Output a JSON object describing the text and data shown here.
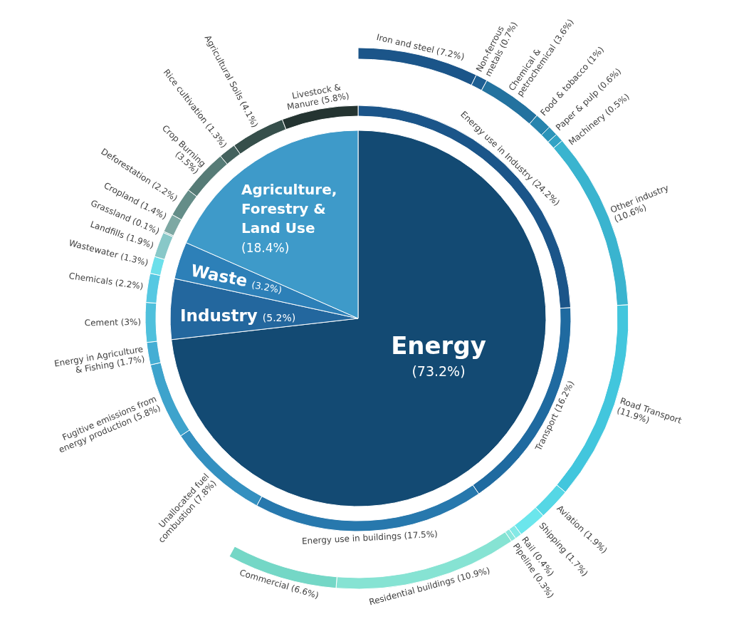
{
  "chart_data": [
    {
      "type": "pie",
      "categories": [
        "Energy",
        "Industry",
        "Waste",
        "Agriculture, Forestry & Land Use"
      ],
      "values": [
        73.2,
        5.2,
        3.2,
        18.4
      ],
      "value_labels": [
        "(73.2%)",
        "(5.2%)",
        "(3.2%)",
        "(18.4%)"
      ],
      "colors": [
        "#134a73",
        "#23679e",
        "#2d80b8",
        "#3e9ac9"
      ]
    },
    {
      "type": "donut",
      "categories": [
        "Energy use in Industry",
        "Transport",
        "Energy use in buildings",
        "Unallocated fuel combustion",
        "Fugitive emissions from energy production",
        "Energy in Agriculture & Fishing",
        "Cement",
        "Chemicals",
        "Wastewater",
        "Landfills",
        "Grassland",
        "Cropland",
        "Deforestation",
        "Crop Burning",
        "Rice cultivation",
        "Agricultural Soils",
        "Livestock & Manure"
      ],
      "values": [
        24.2,
        16.2,
        17.5,
        7.8,
        5.8,
        1.7,
        3,
        2.2,
        1.3,
        1.9,
        0.1,
        1.4,
        2.2,
        3.5,
        1.3,
        4.1,
        5.8
      ],
      "value_labels": [
        "(24.2%)",
        "(16.2%)",
        "(17.5%)",
        "(7.8%)",
        "(5.8%)",
        "(1.7%)",
        "(3%)",
        "(2.2%)",
        "(1.3%)",
        "(1.9%)",
        "(0.1%)",
        "(1.4%)",
        "(2.2%)",
        "(3.5%)",
        "(1.3%)",
        "(4.1%)",
        "(5.8%)"
      ],
      "colors": [
        "#1b5589",
        "#1f6aa0",
        "#2778ad",
        "#3490c0",
        "#3ea3cc",
        "#45aed4",
        "#4fc0dc",
        "#56c8e2",
        "#6cdfea",
        "#88c8c8",
        "#90bdb9",
        "#7da8a3",
        "#648d88",
        "#567b76",
        "#44625e",
        "#364f4b",
        "#243431"
      ]
    },
    {
      "type": "donut",
      "categories": [
        "Iron and steel",
        "Non-ferrous metals",
        "Chemical & petrochemical",
        "Food & tobacco",
        "Paper & pulp",
        "Machinery",
        "Other industry",
        "Road Transport",
        "Aviation",
        "Shipping",
        "Rail",
        "Pipeline",
        "Residential buildings",
        "Commercial"
      ],
      "values": [
        7.2,
        0.7,
        3.6,
        1,
        0.6,
        0.5,
        10.6,
        11.9,
        1.9,
        1.7,
        0.4,
        0.3,
        10.9,
        6.6
      ],
      "value_labels": [
        "(7.2%)",
        "(0.7%)",
        "(3.6%)",
        "(1%)",
        "(0.6%)",
        "(0.5%)",
        "(10.6%)",
        "(11.9%)",
        "(1.9%)",
        "(1.7%)",
        "(0.4%)",
        "(0.3%)",
        "(10.9%)",
        "(6.6%)"
      ],
      "colors": [
        "#1b5589",
        "#1e5f93",
        "#23729f",
        "#2784ad",
        "#2c94b9",
        "#32a3c5",
        "#3ab4cf",
        "#42c6dd",
        "#55d7e5",
        "#6be6ec",
        "#84e9e6",
        "#8ae6dc",
        "#86e3d3",
        "#74d7c6"
      ]
    }
  ]
}
